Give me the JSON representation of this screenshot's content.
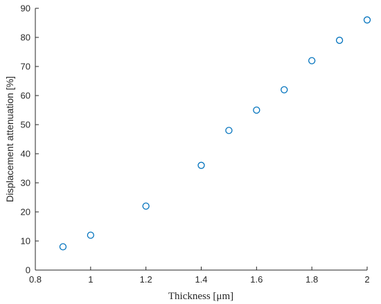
{
  "chart_data": {
    "type": "scatter",
    "title": "",
    "xlabel": "Thickness [μm]",
    "ylabel": "Displacement attenuation [%]",
    "xlim": [
      0.8,
      2
    ],
    "ylim": [
      0,
      90
    ],
    "xticks": [
      0.8,
      1,
      1.2,
      1.4,
      1.6,
      1.8,
      2
    ],
    "xtick_labels": [
      "0.8",
      "1",
      "1.2",
      "1.4",
      "1.6",
      "1.8",
      "2"
    ],
    "yticks": [
      0,
      10,
      20,
      30,
      40,
      50,
      60,
      70,
      80,
      90
    ],
    "ytick_labels": [
      "0",
      "10",
      "20",
      "30",
      "40",
      "50",
      "60",
      "70",
      "80",
      "90"
    ],
    "grid": false,
    "marker": "open-circle",
    "marker_color": "#0072BD",
    "series": [
      {
        "x": [
          0.9,
          1.0,
          1.2,
          1.4,
          1.5,
          1.6,
          1.7,
          1.8,
          1.9,
          2.0
        ],
        "y": [
          8,
          12,
          22,
          36,
          48,
          55,
          62,
          72,
          79,
          86
        ]
      }
    ]
  }
}
